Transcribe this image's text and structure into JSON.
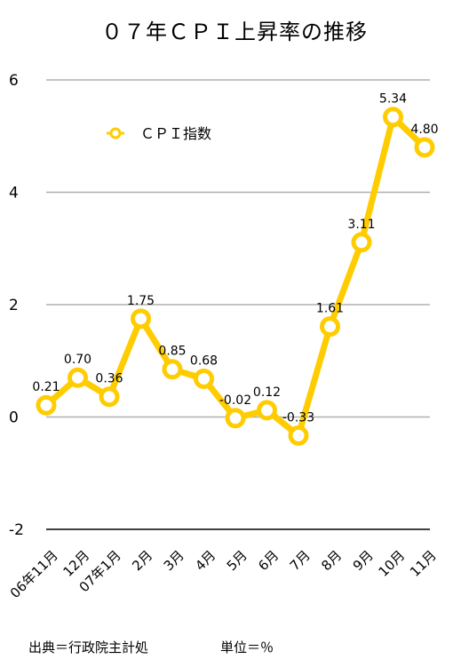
{
  "chart_data": {
    "type": "line",
    "title": "０７年ＣＰＩ上昇率の推移",
    "categories": [
      "06年11月",
      "12月",
      "07年1月",
      "2月",
      "3月",
      "4月",
      "5月",
      "6月",
      "7月",
      "8月",
      "9月",
      "10月",
      "11月"
    ],
    "series": [
      {
        "name": "ＣＰＩ指数",
        "values": [
          0.21,
          0.7,
          0.36,
          1.75,
          0.85,
          0.68,
          -0.02,
          0.12,
          -0.33,
          1.61,
          3.11,
          5.34,
          4.8
        ],
        "labels": [
          "0.21",
          "0.70",
          "0.36",
          "1.75",
          "0.85",
          "0.68",
          "-0.02",
          "0.12",
          "-0.33",
          "1.61",
          "3.11",
          "5.34",
          "4.80"
        ],
        "color": "#ffcc00"
      }
    ],
    "ylim": [
      -2,
      6
    ],
    "yticks": [
      6,
      4,
      2,
      0,
      -2
    ],
    "grid": true,
    "legend_position": "top-left",
    "xlabel": "",
    "ylabel": ""
  },
  "footer": {
    "source": "出典＝行政院主計処",
    "unit": "単位＝％"
  }
}
